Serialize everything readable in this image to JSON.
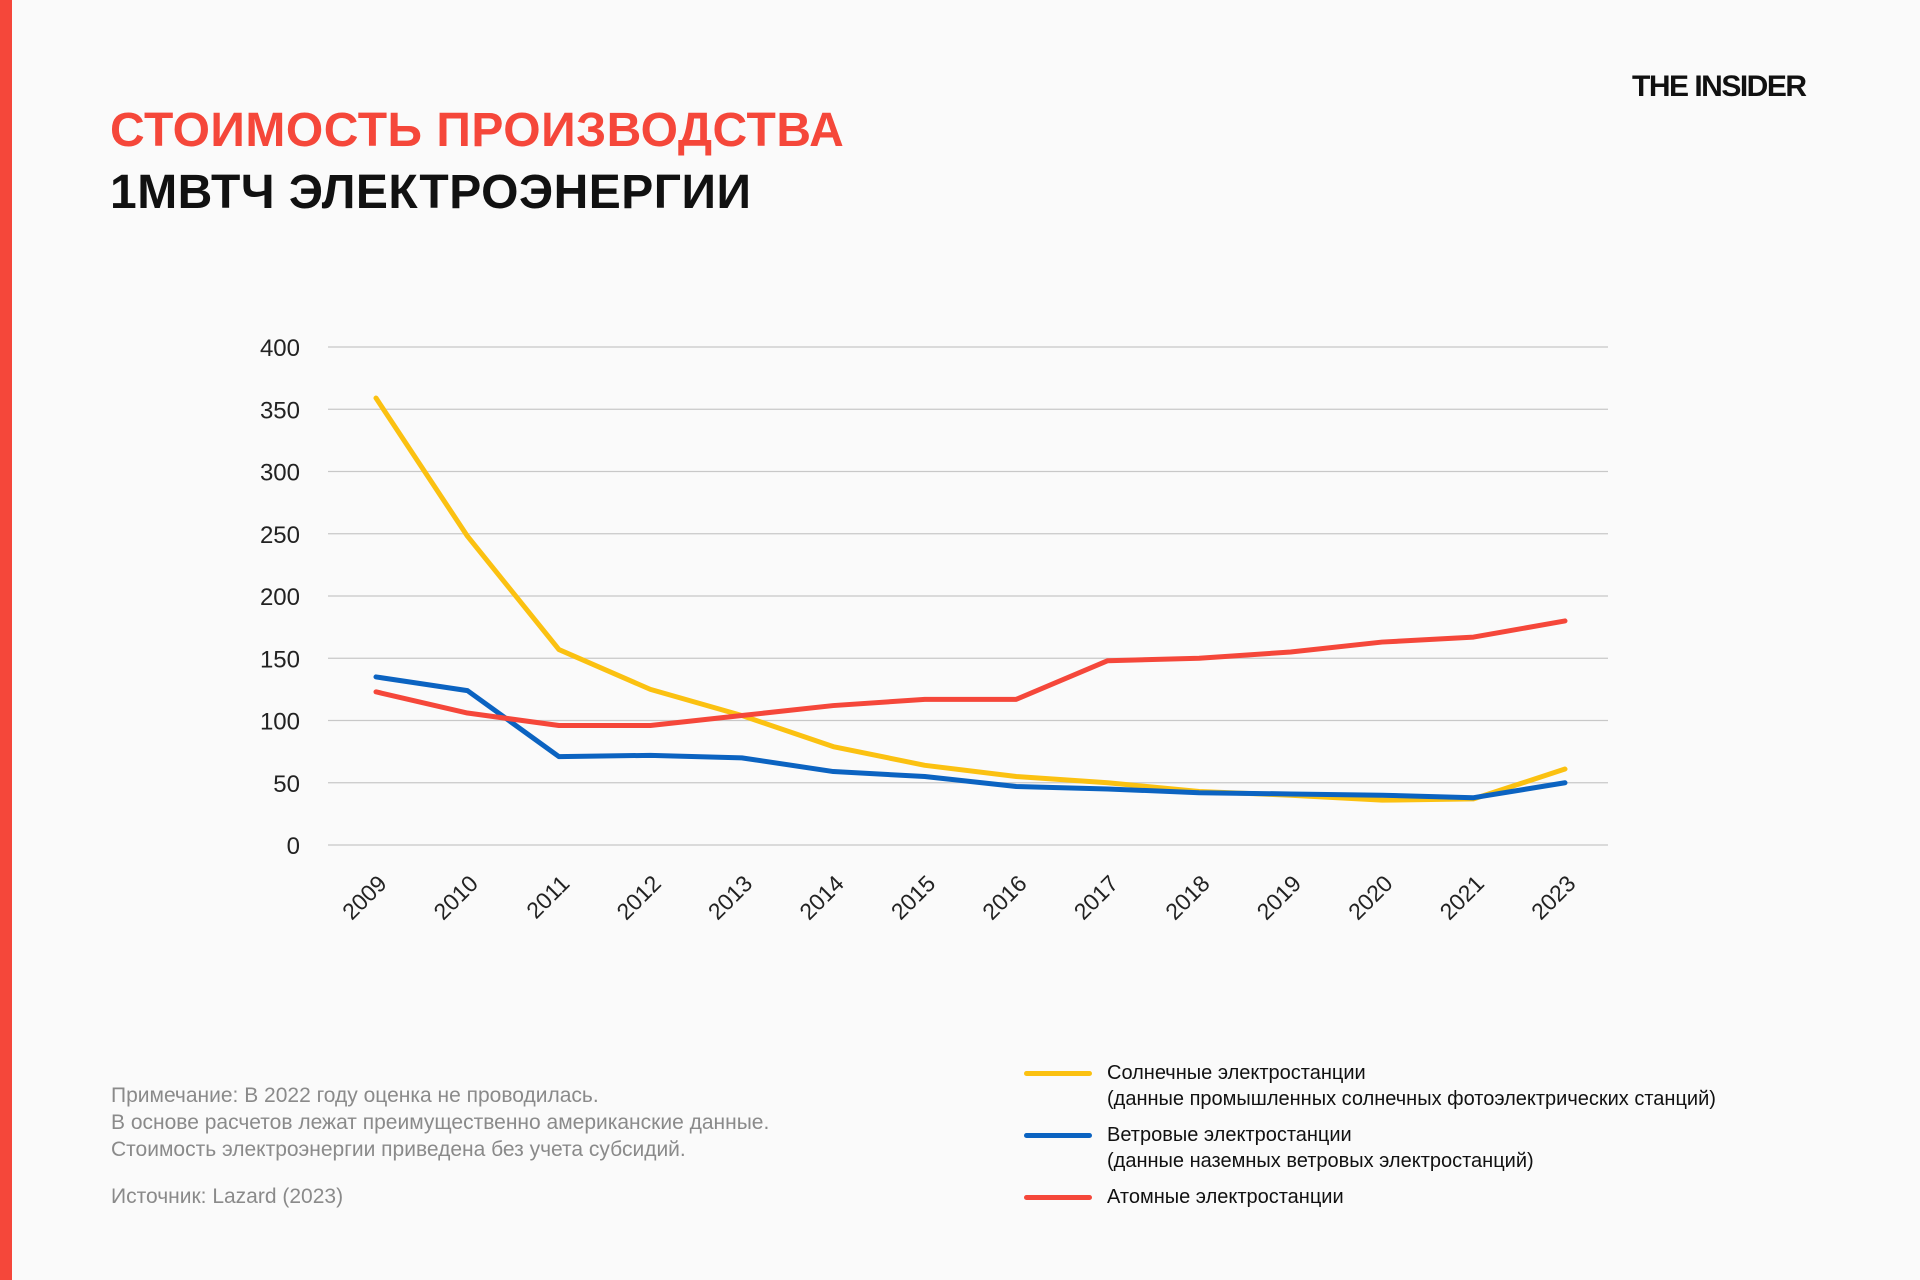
{
  "header": {
    "title_line1": "СТОИМОСТЬ ПРОИЗВОДСТВА",
    "title_line2": "1МВТЧ ЭЛЕКТРОЭНЕРГИИ",
    "logo": "THE INSIDER"
  },
  "notes": {
    "lines": [
      "Примечание: В 2022 году оценка не проводилась.",
      "В основе расчетов лежат преимущественно американские данные.",
      "Стоимость электроэнергии приведена без учета субсидий."
    ],
    "source": "Источник: Lazard (2023)"
  },
  "legend": [
    {
      "line1": "Солнечные электростанции",
      "line2": "(данные промышленных солнечных фотоэлектрических станций)"
    },
    {
      "line1": "Ветровые электростанции",
      "line2": "(данные наземных ветровых электростанций)"
    },
    {
      "line1": "Атомные электростанции",
      "line2": ""
    }
  ],
  "chart_data": {
    "type": "line",
    "title": "СТОИМОСТЬ ПРОИЗВОДСТВА 1МВТЧ ЭЛЕКТРОЭНЕРГИИ",
    "xlabel": "",
    "ylabel": "",
    "categories": [
      "2009",
      "2010",
      "2011",
      "2012",
      "2013",
      "2014",
      "2015",
      "2016",
      "2017",
      "2018",
      "2019",
      "2020",
      "2021",
      "2023"
    ],
    "ylim": [
      0,
      400
    ],
    "yticks": [
      0,
      50,
      100,
      150,
      200,
      250,
      300,
      350,
      400
    ],
    "grid": true,
    "legend_position": "bottom-right",
    "series": [
      {
        "name": "Солнечные электростанции",
        "color": "#fbc111",
        "values": [
          359,
          248,
          157,
          125,
          104,
          79,
          64,
          55,
          50,
          43,
          40,
          36,
          37,
          61
        ]
      },
      {
        "name": "Ветровые электростанции",
        "color": "#0b63c1",
        "values": [
          135,
          124,
          71,
          72,
          70,
          59,
          55,
          47,
          45,
          42,
          41,
          40,
          38,
          50
        ]
      },
      {
        "name": "Атомные электростанции",
        "color": "#f5473a",
        "values": [
          123,
          106,
          96,
          96,
          104,
          112,
          117,
          117,
          148,
          150,
          155,
          163,
          167,
          180
        ]
      }
    ]
  }
}
